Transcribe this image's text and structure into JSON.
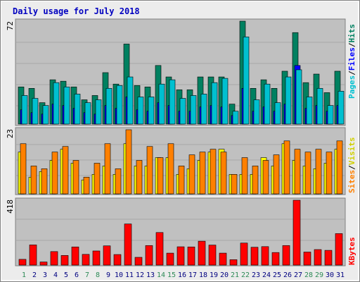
{
  "title": "Daily usage for July 2018",
  "colors": {
    "background": "#ececec",
    "panel": "#c0c0c0",
    "title": "#0000c0",
    "pages": "#00c0d0",
    "files": "#0000ff",
    "hits": "#008060",
    "sites": "#ff8000",
    "visits": "#ffff00",
    "kbytes": "#ff0000",
    "weekday_label": "#008000",
    "weekend_label": "#2e8b57"
  },
  "chart_data": [
    {
      "type": "bar",
      "categories": [
        "1",
        "2",
        "3",
        "4",
        "5",
        "6",
        "7",
        "8",
        "9",
        "10",
        "11",
        "12",
        "13",
        "14",
        "15",
        "16",
        "17",
        "18",
        "19",
        "20",
        "21",
        "22",
        "23",
        "24",
        "25",
        "26",
        "27",
        "28",
        "29",
        "30",
        "31"
      ],
      "ymax_label": "72",
      "ylim": [
        0,
        72
      ],
      "grid": true,
      "legend": "right",
      "legend_parts": [
        "Pages",
        "/",
        "Files",
        "/",
        "Hits"
      ],
      "series": [
        {
          "name": "Hits",
          "color": "#008060",
          "values": [
            26,
            25,
            15,
            31,
            30,
            26,
            17,
            20,
            36,
            28,
            56,
            27,
            26,
            41,
            33,
            24,
            24,
            33,
            33,
            33,
            14,
            72,
            25,
            31,
            25,
            37,
            64,
            29,
            35,
            22,
            37
          ]
        },
        {
          "name": "Files",
          "color": "#0000ff",
          "values": [
            10,
            8,
            7,
            14,
            13,
            11,
            8,
            7,
            13,
            11,
            19,
            10,
            9,
            15,
            13,
            9,
            9,
            12,
            13,
            12,
            6,
            25,
            9,
            12,
            9,
            14,
            41,
            11,
            13,
            9,
            13
          ]
        },
        {
          "name": "Pages",
          "color": "#00c0d0",
          "values": [
            20,
            18,
            13,
            29,
            26,
            21,
            15,
            17,
            25,
            27,
            33,
            19,
            19,
            28,
            31,
            18,
            20,
            21,
            29,
            32,
            9,
            61,
            17,
            28,
            15,
            33,
            38,
            19,
            25,
            13,
            23
          ]
        }
      ]
    },
    {
      "type": "bar",
      "categories": [
        "1",
        "2",
        "3",
        "4",
        "5",
        "6",
        "7",
        "8",
        "9",
        "10",
        "11",
        "12",
        "13",
        "14",
        "15",
        "16",
        "17",
        "18",
        "19",
        "20",
        "21",
        "22",
        "23",
        "24",
        "25",
        "26",
        "27",
        "28",
        "29",
        "30",
        "31"
      ],
      "ymax_label": "23",
      "ylim": [
        0,
        23
      ],
      "grid": true,
      "legend": "right",
      "legend_parts": [
        "Sites",
        "/",
        "Visits"
      ],
      "series": [
        {
          "name": "Visits",
          "color": "#ffff00",
          "values": [
            15,
            6,
            8,
            12,
            16,
            11,
            5,
            7,
            10,
            7,
            18,
            10,
            10,
            13,
            13,
            7,
            9,
            12,
            15,
            16,
            7,
            7,
            7,
            13,
            10,
            18,
            12,
            10,
            9,
            11,
            16
          ]
        },
        {
          "name": "Sites",
          "color": "#ff8000",
          "values": [
            18,
            10,
            9,
            15,
            17,
            12,
            6,
            11,
            18,
            9,
            23,
            12,
            17,
            13,
            18,
            10,
            14,
            15,
            16,
            15,
            7,
            13,
            10,
            12,
            14,
            19,
            16,
            15,
            16,
            15,
            19
          ]
        }
      ]
    },
    {
      "type": "bar",
      "categories": [
        "1",
        "2",
        "3",
        "4",
        "5",
        "6",
        "7",
        "8",
        "9",
        "10",
        "11",
        "12",
        "13",
        "14",
        "15",
        "16",
        "17",
        "18",
        "19",
        "20",
        "21",
        "22",
        "23",
        "24",
        "25",
        "26",
        "27",
        "28",
        "29",
        "30",
        "31"
      ],
      "ymax_label": "418",
      "ylim": [
        0,
        418
      ],
      "grid": true,
      "legend": "right",
      "legend_parts": [
        "KBytes"
      ],
      "series": [
        {
          "name": "KBytes",
          "color": "#ff0000",
          "values": [
            37,
            130,
            20,
            87,
            62,
            117,
            69,
            91,
            124,
            68,
            265,
            50,
            126,
            210,
            77,
            118,
            117,
            154,
            129,
            77,
            35,
            142,
            115,
            119,
            81,
            126,
            418,
            84,
            100,
            95,
            203
          ]
        }
      ]
    }
  ],
  "days": [
    "1",
    "2",
    "3",
    "4",
    "5",
    "6",
    "7",
    "8",
    "9",
    "10",
    "11",
    "12",
    "13",
    "14",
    "15",
    "16",
    "17",
    "18",
    "19",
    "20",
    "21",
    "22",
    "23",
    "24",
    "25",
    "26",
    "27",
    "28",
    "29",
    "30",
    "31"
  ],
  "weekend_days": [
    "1",
    "7",
    "8",
    "14",
    "15",
    "21",
    "22",
    "28",
    "29"
  ]
}
